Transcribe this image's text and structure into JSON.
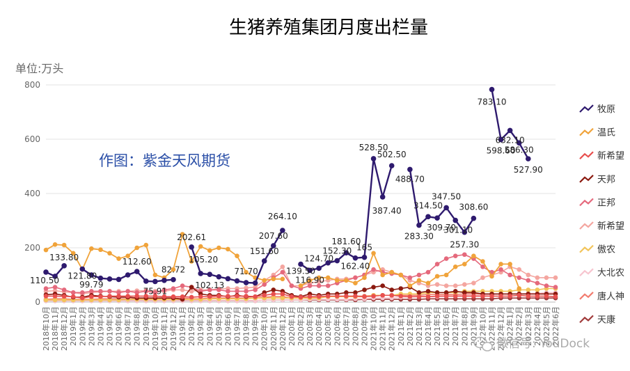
{
  "chart_data": {
    "type": "line",
    "title": "生猪养殖集团月度出栏量",
    "unit_label": "单位:万头",
    "credit": "作图：紫金天风期货",
    "watermark": "微信号: YouDock",
    "ylim": [
      0,
      800
    ],
    "yticks": [
      0,
      200,
      400,
      600,
      800
    ],
    "grid": true,
    "legend_position": "right",
    "categories": [
      "2018年10月",
      "2018年11月",
      "2018年12月",
      "2019年1月",
      "2019年2月",
      "2019年3月",
      "2019年4月",
      "2019年5月",
      "2019年6月",
      "2019年7月",
      "2019年8月",
      "2019年9月",
      "2019年10月",
      "2019年11月",
      "2019年12月",
      "2019年1月",
      "2019年2月",
      "2019年3月",
      "2019年4月",
      "2019年5月",
      "2019年6月",
      "2019年7月",
      "2019年8月",
      "2019年9月",
      "2020年10月",
      "2020年11月",
      "2020年12月",
      "2020年1月",
      "2020年2月",
      "2020年3月",
      "2020年4月",
      "2020年5月",
      "2020年6月",
      "2020年7月",
      "2020年8月",
      "2020年9月",
      "2021年10月",
      "2021年11月",
      "2021年12月",
      "2021年1月",
      "2021年2月",
      "2021年3月",
      "2021年4月",
      "2021年5月",
      "2021年6月",
      "2021年7月",
      "2021年8月",
      "2021年9月",
      "2022年10月",
      "2022年11月",
      "2022年12月",
      "2022年1月",
      "2022年2月",
      "2022年3月",
      "2022年4月",
      "2022年5月",
      "2022年6月"
    ],
    "series": [
      {
        "name": "牧原",
        "color": "#2e1a6e",
        "width": 2.4,
        "values": [
          110.5,
          95,
          133.8,
          null,
          121.8,
          99.79,
          88,
          85,
          83.5,
          100,
          112.6,
          77,
          75.91,
          80,
          82.72,
          null,
          202.61,
          105.2,
          102.13,
          93,
          86.2,
          78,
          71.7,
          70.5,
          151.6,
          207.6,
          264.1,
          null,
          139.5,
          116.9,
          124.7,
          144.5,
          152.3,
          181.6,
          162.4,
          165,
          528.5,
          387.4,
          502.5,
          null,
          488.7,
          283.3,
          314.5,
          309.7,
          347.5,
          301.1,
          257.3,
          308.6,
          null,
          783.1,
          598.6,
          632.1,
          586.3,
          527.9,
          null,
          null,
          null
        ]
      },
      {
        "name": "温氏",
        "color": "#f0a33a",
        "width": 1.8,
        "values": [
          192,
          212,
          210,
          180,
          120,
          197,
          193,
          180,
          160,
          170,
          200,
          210,
          100,
          90,
          120,
          250,
          150,
          205,
          190,
          200,
          195,
          170,
          110,
          90,
          80,
          85,
          85,
          null,
          60,
          80,
          90,
          90,
          80,
          80,
          70,
          90,
          180,
          100,
          110,
          100,
          60,
          80,
          70,
          95,
          100,
          130,
          140,
          170,
          150,
          95,
          140,
          140,
          50,
          null,
          null,
          null,
          null
        ]
      },
      {
        "name": "新希望",
        "color": "#e8504f",
        "width": 1.6,
        "values": [
          22,
          22,
          21,
          20,
          15,
          20,
          20,
          22,
          22,
          22,
          22,
          22,
          22,
          20,
          20,
          20,
          18,
          20,
          20,
          22,
          22,
          22,
          22,
          20,
          25,
          30,
          30,
          20,
          18,
          20,
          20,
          22,
          22,
          22,
          22,
          20,
          22,
          25,
          25,
          22,
          20,
          20,
          20,
          22,
          22,
          22,
          22,
          22,
          22,
          22,
          22,
          22,
          25,
          22,
          22,
          22,
          20
        ]
      },
      {
        "name": "天邦",
        "color": "#8b1a10",
        "width": 1.6,
        "values": [
          27,
          30,
          25,
          18,
          18,
          25,
          22,
          20,
          18,
          18,
          15,
          15,
          15,
          15,
          15,
          10,
          55,
          30,
          25,
          25,
          20,
          25,
          20,
          20,
          35,
          45,
          40,
          25,
          20,
          30,
          25,
          30,
          30,
          35,
          35,
          45,
          55,
          60,
          45,
          50,
          55,
          35,
          40,
          35,
          35,
          40,
          35,
          35,
          30,
          30,
          30,
          30,
          30,
          30,
          30,
          30,
          30
        ]
      },
      {
        "name": "正邦",
        "color": "#e5697c",
        "width": 1.6,
        "values": [
          50,
          55,
          45,
          35,
          35,
          40,
          40,
          40,
          35,
          40,
          35,
          40,
          35,
          45,
          50,
          60,
          55,
          40,
          45,
          45,
          40,
          40,
          40,
          45,
          65,
          90,
          110,
          60,
          50,
          60,
          60,
          60,
          70,
          80,
          90,
          100,
          120,
          110,
          105,
          100,
          90,
          100,
          110,
          140,
          160,
          170,
          175,
          160,
          130,
          110,
          120,
          100,
          90,
          80,
          70,
          60,
          55
        ]
      },
      {
        "name": "新希望",
        "color": "#f4a6a0",
        "width": 1.6,
        "values": [
          40,
          42,
          38,
          35,
          30,
          35,
          38,
          40,
          40,
          40,
          42,
          42,
          40,
          40,
          45,
          45,
          40,
          45,
          45,
          48,
          50,
          50,
          52,
          55,
          80,
          100,
          130,
          60,
          60,
          70,
          75,
          80,
          85,
          85,
          90,
          100,
          110,
          120,
          110,
          100,
          80,
          70,
          60,
          65,
          60,
          60,
          65,
          70,
          90,
          100,
          110,
          130,
          120,
          100,
          90,
          90,
          90
        ]
      },
      {
        "name": "傲农",
        "color": "#f2c45a",
        "width": 1.6,
        "values": [
          8,
          8,
          8,
          8,
          8,
          8,
          8,
          8,
          8,
          10,
          10,
          10,
          10,
          10,
          10,
          10,
          10,
          10,
          12,
          12,
          12,
          12,
          12,
          15,
          15,
          15,
          15,
          15,
          15,
          15,
          15,
          20,
          20,
          20,
          20,
          20,
          25,
          25,
          25,
          30,
          30,
          30,
          35,
          35,
          35,
          35,
          40,
          40,
          40,
          40,
          40,
          40,
          45,
          45,
          45,
          50,
          50
        ]
      },
      {
        "name": "大北农",
        "color": "#f7c5cf",
        "width": 1.6,
        "values": [
          5,
          5,
          5,
          5,
          5,
          5,
          5,
          5,
          5,
          5,
          5,
          5,
          5,
          5,
          5,
          5,
          5,
          5,
          5,
          5,
          5,
          5,
          5,
          5,
          8,
          8,
          8,
          8,
          8,
          10,
          10,
          10,
          10,
          10,
          12,
          12,
          15,
          15,
          15,
          18,
          18,
          20,
          20,
          20,
          22,
          22,
          25,
          25,
          25,
          28,
          30,
          30,
          30,
          32,
          32,
          35,
          35
        ]
      },
      {
        "name": "唐人神",
        "color": "#f27c6f",
        "width": 1.6,
        "values": [
          10,
          12,
          12,
          10,
          10,
          10,
          12,
          12,
          12,
          12,
          12,
          12,
          12,
          12,
          15,
          15,
          12,
          12,
          15,
          15,
          15,
          15,
          15,
          15,
          18,
          20,
          20,
          15,
          15,
          18,
          18,
          20,
          20,
          20,
          22,
          22,
          25,
          25,
          25,
          25,
          25,
          25,
          28,
          28,
          28,
          28,
          30,
          30,
          30,
          30,
          30,
          30,
          30,
          30,
          30,
          30,
          30
        ]
      },
      {
        "name": "天康",
        "color": "#a03a3a",
        "width": 1.6,
        "values": [
          5,
          5,
          5,
          5,
          5,
          5,
          5,
          5,
          5,
          5,
          5,
          5,
          5,
          5,
          5,
          5,
          5,
          5,
          5,
          5,
          5,
          5,
          5,
          5,
          8,
          8,
          8,
          8,
          8,
          8,
          8,
          8,
          8,
          8,
          8,
          10,
          10,
          10,
          10,
          10,
          10,
          10,
          12,
          12,
          12,
          12,
          12,
          12,
          12,
          12,
          15,
          15,
          15,
          15,
          15,
          15,
          15
        ]
      }
    ],
    "data_labels": [
      {
        "series": 0,
        "i": 0,
        "text": "110.50",
        "dx": -2,
        "dy": 16
      },
      {
        "series": 0,
        "i": 2,
        "text": "133.80",
        "dx": 0,
        "dy": -8
      },
      {
        "series": 0,
        "i": 4,
        "text": "121.80",
        "dx": 0,
        "dy": 14
      },
      {
        "series": 0,
        "i": 5,
        "text": "99.79",
        "dx": 0,
        "dy": 18
      },
      {
        "series": 0,
        "i": 10,
        "text": "112.60",
        "dx": 0,
        "dy": -10
      },
      {
        "series": 0,
        "i": 12,
        "text": "75.91",
        "dx": 0,
        "dy": 18
      },
      {
        "series": 0,
        "i": 14,
        "text": "82.72",
        "dx": 0,
        "dy": -10
      },
      {
        "series": 0,
        "i": 16,
        "text": "202.61",
        "dx": 0,
        "dy": -10
      },
      {
        "series": 0,
        "i": 17,
        "text": "105.20",
        "dx": 4,
        "dy": -16
      },
      {
        "series": 0,
        "i": 18,
        "text": "102.13",
        "dx": 0,
        "dy": 20
      },
      {
        "series": 0,
        "i": 22,
        "text": "71.70",
        "dx": 0,
        "dy": -12
      },
      {
        "series": 0,
        "i": 24,
        "text": "151.60",
        "dx": 0,
        "dy": -10
      },
      {
        "series": 0,
        "i": 25,
        "text": "207.60",
        "dx": 0,
        "dy": -10
      },
      {
        "series": 0,
        "i": 26,
        "text": "264.10",
        "dx": 0,
        "dy": -16
      },
      {
        "series": 0,
        "i": 28,
        "text": "139.50",
        "dx": 0,
        "dy": 14
      },
      {
        "series": 0,
        "i": 29,
        "text": "116.90",
        "dx": 0,
        "dy": 18
      },
      {
        "series": 0,
        "i": 30,
        "text": "124.70",
        "dx": 0,
        "dy": -10
      },
      {
        "series": 0,
        "i": 32,
        "text": "152.30",
        "dx": 0,
        "dy": -10
      },
      {
        "series": 0,
        "i": 33,
        "text": "181.60",
        "dx": 0,
        "dy": -12
      },
      {
        "series": 0,
        "i": 34,
        "text": "162.40",
        "dx": 0,
        "dy": 16
      },
      {
        "series": 0,
        "i": 35,
        "text": "165",
        "dx": 0,
        "dy": -10
      },
      {
        "series": 0,
        "i": 36,
        "text": "528.50",
        "dx": 0,
        "dy": -12
      },
      {
        "series": 0,
        "i": 37,
        "text": "387.40",
        "dx": 6,
        "dy": 24
      },
      {
        "series": 0,
        "i": 38,
        "text": "502.50",
        "dx": 0,
        "dy": -12
      },
      {
        "series": 0,
        "i": 40,
        "text": "488.70",
        "dx": 0,
        "dy": 18
      },
      {
        "series": 0,
        "i": 41,
        "text": "283.30",
        "dx": 0,
        "dy": 20
      },
      {
        "series": 0,
        "i": 42,
        "text": "314.50",
        "dx": 0,
        "dy": -12
      },
      {
        "series": 0,
        "i": 43,
        "text": "309.70",
        "dx": 6,
        "dy": 18
      },
      {
        "series": 0,
        "i": 44,
        "text": "347.50",
        "dx": 0,
        "dy": -12
      },
      {
        "series": 0,
        "i": 45,
        "text": "301.10",
        "dx": 4,
        "dy": 18
      },
      {
        "series": 0,
        "i": 46,
        "text": "257.30",
        "dx": 0,
        "dy": 22
      },
      {
        "series": 0,
        "i": 47,
        "text": "308.60",
        "dx": 0,
        "dy": -12
      },
      {
        "series": 0,
        "i": 49,
        "text": "783.10",
        "dx": 0,
        "dy": 22
      },
      {
        "series": 0,
        "i": 50,
        "text": "598.60",
        "dx": 0,
        "dy": 20
      },
      {
        "series": 0,
        "i": 51,
        "text": "632.10",
        "dx": 0,
        "dy": 18
      },
      {
        "series": 0,
        "i": 52,
        "text": "586.30",
        "dx": 0,
        "dy": 14
      },
      {
        "series": 0,
        "i": 53,
        "text": "527.90",
        "dx": 0,
        "dy": 20
      }
    ]
  }
}
